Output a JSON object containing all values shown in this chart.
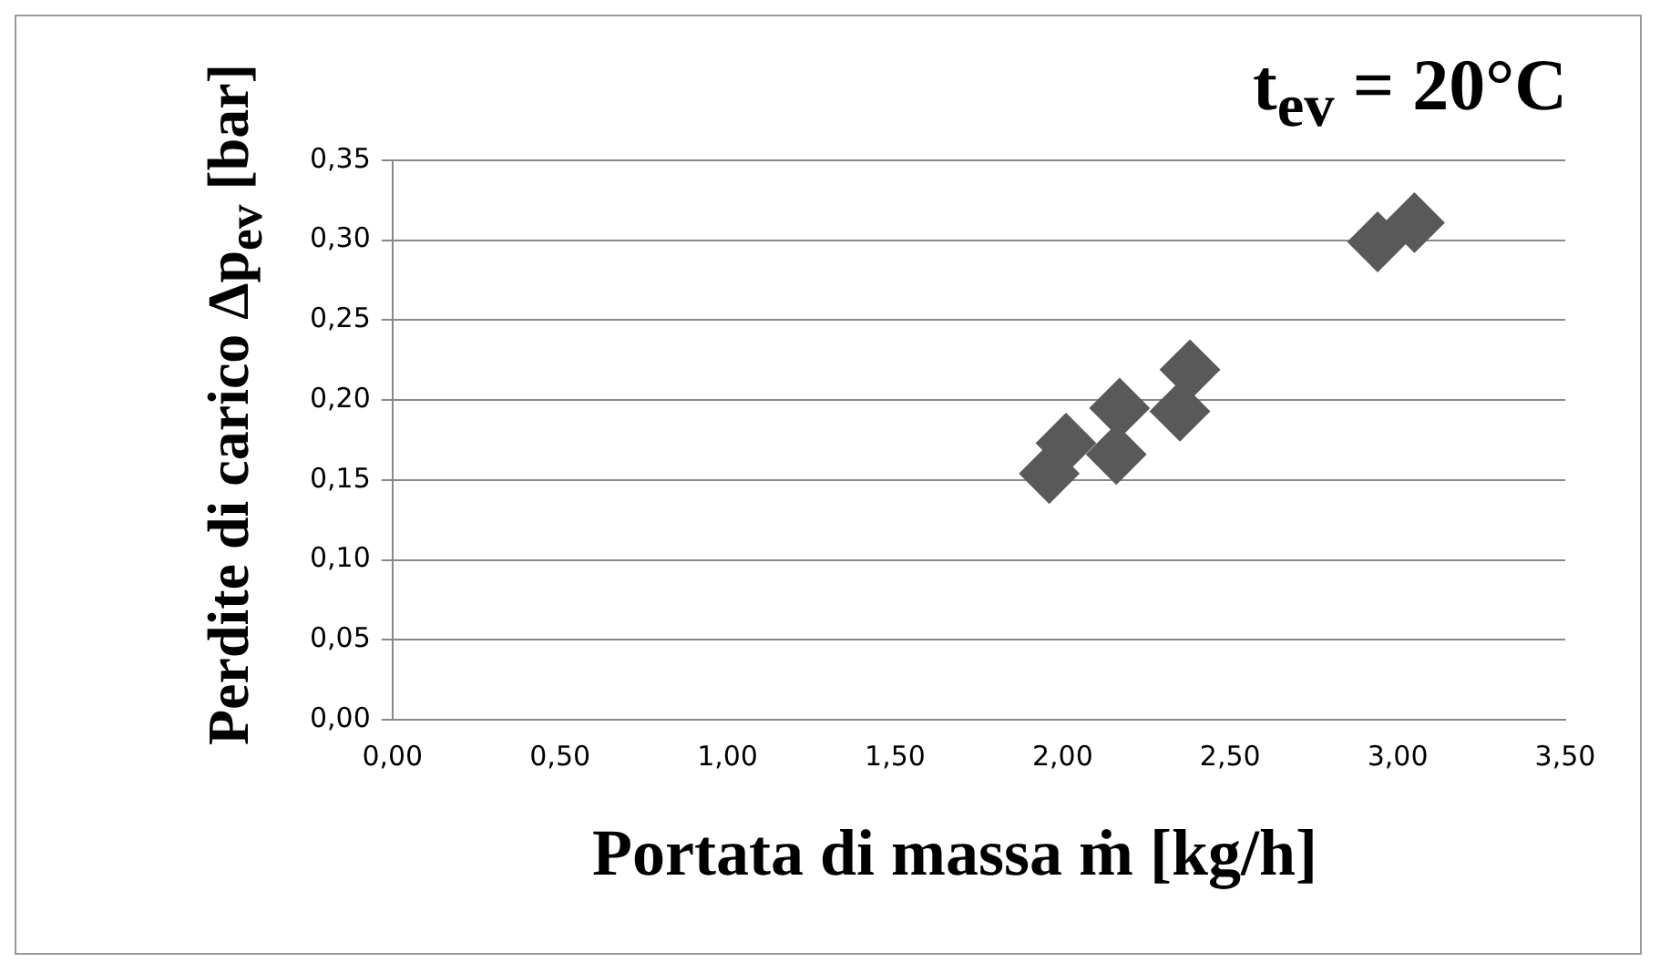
{
  "chart_data": {
    "type": "scatter",
    "title": "t$_{ev}$ = 20°C",
    "xlabel": "Portata di massa ṁ [kg/h]",
    "ylabel": "Perdite di carico Δp$_{ev}$ [bar]",
    "x": [
      1.96,
      2.01,
      2.16,
      2.17,
      2.35,
      2.38,
      2.94,
      3.05
    ],
    "series": [
      {
        "color": "#595959",
        "values": [
          0.154,
          0.173,
          0.166,
          0.195,
          0.193,
          0.219,
          0.299,
          0.311
        ]
      }
    ],
    "xlim": [
      0,
      3.5
    ],
    "xticks": [
      {
        "value": 0,
        "label": "0,00"
      },
      {
        "value": 0.5,
        "label": "0,50"
      },
      {
        "value": 1,
        "label": "1,00"
      },
      {
        "value": 1.5,
        "label": "1,50"
      },
      {
        "value": 2,
        "label": "2,00"
      },
      {
        "value": 2.5,
        "label": "2,50"
      },
      {
        "value": 3,
        "label": "3,00"
      },
      {
        "value": 3.5,
        "label": "3,50"
      }
    ],
    "ylim": [
      0,
      0.35
    ],
    "yticks": [
      {
        "value": 0,
        "label": "0,00"
      },
      {
        "value": 0.05,
        "label": "0,05"
      },
      {
        "value": 0.1,
        "label": "0,10"
      },
      {
        "value": 0.15,
        "label": "0,15"
      },
      {
        "value": 0.2,
        "label": "0,20"
      },
      {
        "value": 0.25,
        "label": "0,25"
      },
      {
        "value": 0.3,
        "label": "0,30"
      },
      {
        "value": 0.35,
        "label": "0,35"
      }
    ],
    "grid": "y",
    "marker": "diamond",
    "legend": false
  }
}
